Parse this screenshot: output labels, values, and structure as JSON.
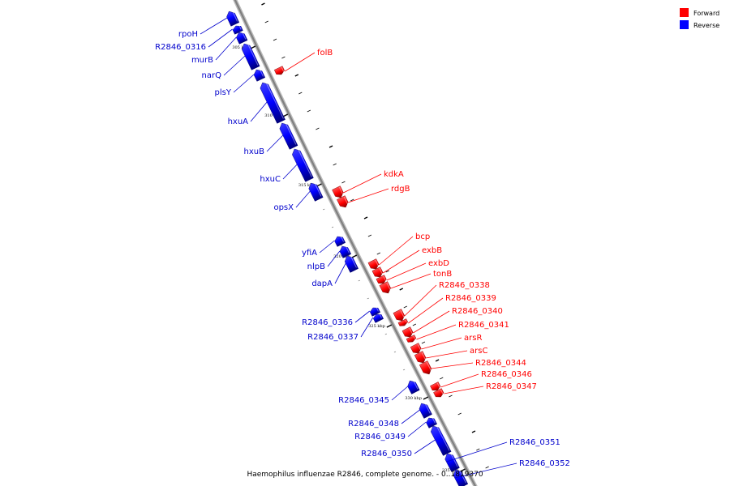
{
  "colors": {
    "forward": "#ff0000",
    "reverse": "#0000ff",
    "backbone": "#808080",
    "label_forward": "#ff0000",
    "label_reverse": "#0000cc"
  },
  "legend": {
    "forward": "Forward",
    "reverse": "Reverse"
  },
  "caption": "Haemophilus influenzae R2846, complete genome. - 0..1819370",
  "kbp_ticks": [
    {
      "label": "305 kbp"
    },
    {
      "label": "310 kbp"
    },
    {
      "label": "315 kbp"
    },
    {
      "label": "320 kbp"
    },
    {
      "label": "325 kbp"
    },
    {
      "label": "330 kbp"
    },
    {
      "label": "335 kbp"
    }
  ],
  "genes_reverse": [
    {
      "name": "rpoH"
    },
    {
      "name": "R2846_0316"
    },
    {
      "name": "murB"
    },
    {
      "name": "narQ"
    },
    {
      "name": "plsY"
    },
    {
      "name": "hxuA"
    },
    {
      "name": "hxuB"
    },
    {
      "name": "hxuC"
    },
    {
      "name": "opsX"
    },
    {
      "name": "yfiA"
    },
    {
      "name": "nlpB"
    },
    {
      "name": "dapA"
    },
    {
      "name": "R2846_0336"
    },
    {
      "name": "R2846_0337"
    },
    {
      "name": "R2846_0345"
    },
    {
      "name": "R2846_0348"
    },
    {
      "name": "R2846_0349"
    },
    {
      "name": "R2846_0350"
    },
    {
      "name": "R2846_0351"
    },
    {
      "name": "R2846_0352"
    }
  ],
  "genes_forward": [
    {
      "name": "folB"
    },
    {
      "name": "kdkA"
    },
    {
      "name": "rdgB"
    },
    {
      "name": "bcp"
    },
    {
      "name": "exbB"
    },
    {
      "name": "exbD"
    },
    {
      "name": "tonB"
    },
    {
      "name": "R2846_0338"
    },
    {
      "name": "R2846_0339"
    },
    {
      "name": "R2846_0340"
    },
    {
      "name": "R2846_0341"
    },
    {
      "name": "arsR"
    },
    {
      "name": "arsC"
    },
    {
      "name": "R2846_0344"
    },
    {
      "name": "R2846_0346"
    },
    {
      "name": "R2846_0347"
    }
  ]
}
